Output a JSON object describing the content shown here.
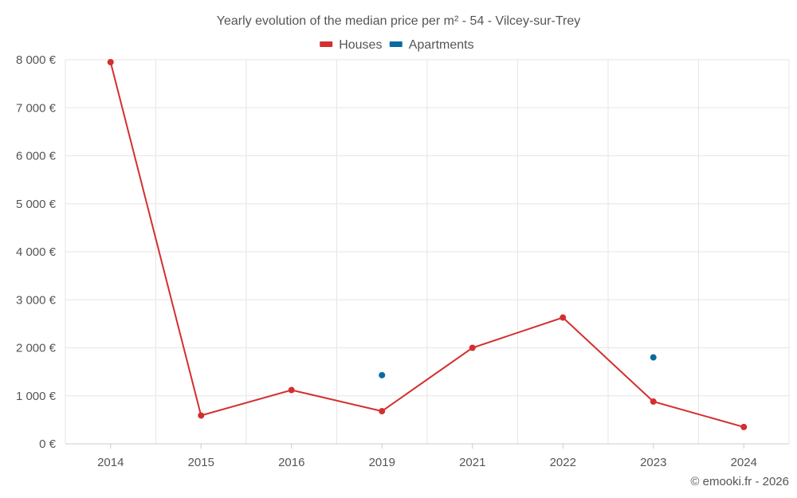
{
  "chart_data": {
    "type": "line",
    "title": "Yearly evolution of the median price per m² - 54 - Vilcey-sur-Trey",
    "categories": [
      "2014",
      "2015",
      "2016",
      "2019",
      "2021",
      "2022",
      "2023",
      "2024"
    ],
    "series": [
      {
        "name": "Houses",
        "color": "#d32f2f",
        "values": [
          7950,
          590,
          1120,
          680,
          2000,
          2630,
          880,
          350
        ]
      },
      {
        "name": "Apartments",
        "color": "#0b6aa2",
        "values": [
          null,
          null,
          null,
          1430,
          null,
          null,
          1800,
          null
        ]
      }
    ],
    "y_ticks": [
      "0 €",
      "1 000 €",
      "2 000 €",
      "3 000 €",
      "4 000 €",
      "5 000 €",
      "6 000 €",
      "7 000 €",
      "8 000 €"
    ],
    "ylim": [
      0,
      8000
    ],
    "grid": true,
    "legend_position": "top-center",
    "credit": "© emooki.fr - 2026"
  }
}
